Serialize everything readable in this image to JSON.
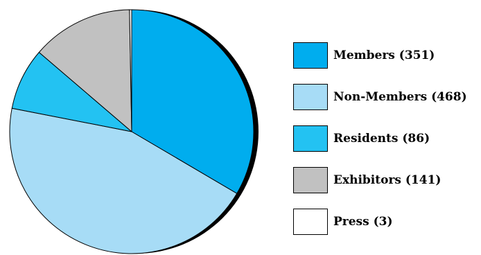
{
  "chart_data": {
    "type": "pie",
    "title": "",
    "slices": [
      {
        "label": "Members",
        "value": 351,
        "color": "#00adee"
      },
      {
        "label": "Non-Members",
        "value": 468,
        "color": "#a7dcf6"
      },
      {
        "label": "Residents",
        "value": 86,
        "color": "#23c2f2"
      },
      {
        "label": "Exhibitors",
        "value": 141,
        "color": "#c1c1c1"
      },
      {
        "label": "Press",
        "value": 3,
        "color": "#ffffff"
      }
    ],
    "legend": {
      "position": "right",
      "entries": [
        "Members (351)",
        "Non-Members (468)",
        "Residents (86)",
        "Exhibitors (141)",
        "Press (3)"
      ]
    },
    "shadow": true
  }
}
